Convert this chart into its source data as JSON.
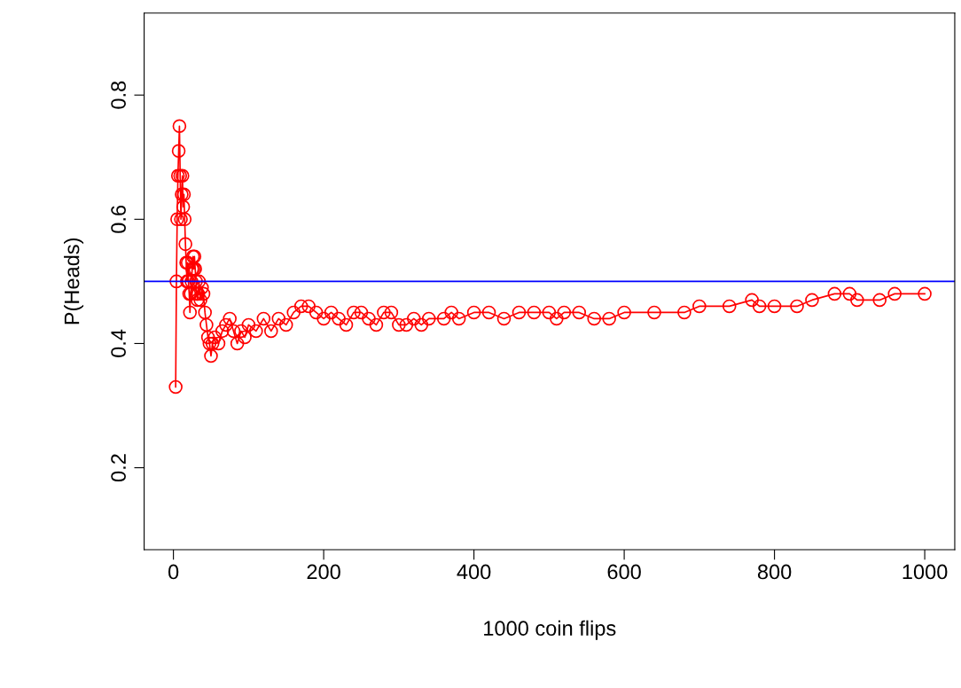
{
  "chart_data": {
    "type": "line",
    "xlabel": "1000 coin flips",
    "ylabel": "P(Heads)",
    "series": [
      {
        "color": "#ff0000",
        "x": [
          3,
          4,
          5,
          6,
          7,
          8,
          9,
          10,
          11,
          12,
          13,
          14,
          15,
          16,
          17,
          18,
          19,
          20,
          21,
          22,
          23,
          24,
          25,
          26,
          27,
          28,
          29,
          30,
          31,
          32,
          33,
          34,
          36,
          38,
          40,
          42,
          44,
          46,
          48,
          50,
          52,
          55,
          60,
          65,
          70,
          75,
          80,
          85,
          90,
          95,
          100,
          110,
          120,
          130,
          140,
          150,
          160,
          170,
          180,
          190,
          200,
          210,
          220,
          230,
          240,
          250,
          260,
          270,
          280,
          290,
          300,
          310,
          320,
          330,
          340,
          360,
          370,
          380,
          400,
          420,
          440,
          460,
          480,
          500,
          510,
          520,
          540,
          560,
          580,
          600,
          640,
          680,
          700,
          740,
          770,
          780,
          800,
          830,
          850,
          880,
          900,
          910,
          940,
          960,
          1000
        ],
        "values": [
          0.33,
          0.5,
          0.6,
          0.67,
          0.71,
          0.75,
          0.67,
          0.6,
          0.64,
          0.67,
          0.62,
          0.64,
          0.6,
          0.56,
          0.53,
          0.5,
          0.53,
          0.5,
          0.48,
          0.45,
          0.48,
          0.5,
          0.52,
          0.54,
          0.52,
          0.54,
          0.52,
          0.5,
          0.48,
          0.47,
          0.48,
          0.5,
          0.47,
          0.49,
          0.48,
          0.45,
          0.43,
          0.41,
          0.4,
          0.38,
          0.4,
          0.41,
          0.4,
          0.42,
          0.43,
          0.44,
          0.42,
          0.4,
          0.42,
          0.41,
          0.43,
          0.42,
          0.44,
          0.42,
          0.44,
          0.43,
          0.45,
          0.46,
          0.46,
          0.45,
          0.44,
          0.45,
          0.44,
          0.43,
          0.45,
          0.45,
          0.44,
          0.43,
          0.45,
          0.45,
          0.43,
          0.43,
          0.44,
          0.43,
          0.44,
          0.44,
          0.45,
          0.44,
          0.45,
          0.45,
          0.44,
          0.45,
          0.45,
          0.45,
          0.44,
          0.45,
          0.45,
          0.44,
          0.44,
          0.45,
          0.45,
          0.45,
          0.46,
          0.46,
          0.47,
          0.46,
          0.46,
          0.46,
          0.47,
          0.48,
          0.48,
          0.47,
          0.47,
          0.48,
          0.48
        ]
      }
    ],
    "marker": "circle",
    "line_style": "solid",
    "grid": false,
    "legend": false,
    "xlim": [
      -38.96,
      1039.96
    ],
    "ylim": [
      0.068,
      0.932
    ],
    "xticks": [
      0,
      200,
      400,
      600,
      800,
      1000
    ],
    "yticks": [
      0.2,
      0.4,
      0.6,
      0.8
    ],
    "ref_lines": [
      {
        "axis": "y",
        "value": 0.5,
        "color": "#0000ff"
      }
    ]
  }
}
